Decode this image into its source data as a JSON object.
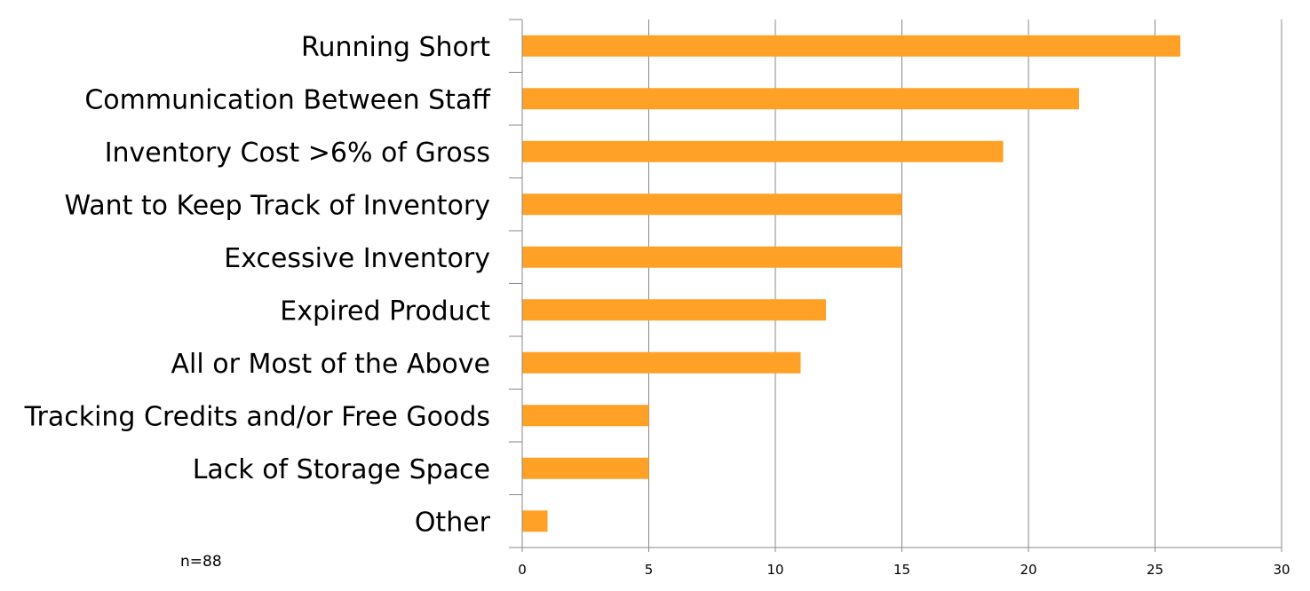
{
  "note": "n=88",
  "colors": {
    "bar": "#FFA126",
    "grid": "#888888",
    "axis": "#888888"
  },
  "chart_data": {
    "type": "bar",
    "orientation": "horizontal",
    "categories": [
      "Running Short",
      "Communication Between Staff",
      "Inventory Cost >6% of Gross",
      "Want to Keep Track of Inventory",
      "Excessive Inventory",
      "Expired Product",
      "All or Most of the Above",
      "Tracking Credits and/or Free Goods",
      "Lack of Storage Space",
      "Other"
    ],
    "values": [
      26,
      22,
      19,
      15,
      15,
      12,
      11,
      5,
      5,
      1
    ],
    "xlim": [
      0,
      30
    ],
    "xticks": [
      0,
      5,
      10,
      15,
      20,
      25,
      30
    ],
    "title": "",
    "xlabel": "",
    "ylabel": "",
    "grid": true,
    "legend": "none"
  }
}
